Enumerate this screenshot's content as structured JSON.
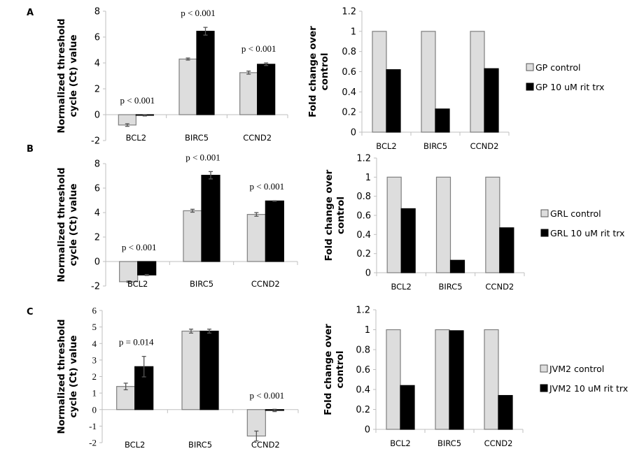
{
  "colors": {
    "control": "#dddddd",
    "treatment": "#000000",
    "bar_stroke": "#7f7f7f",
    "axis": "#bfbfbf",
    "error": "#555555"
  },
  "chart_data": [
    {
      "panel": "A",
      "type": "bar",
      "side": "left",
      "title": "",
      "xlabel": "",
      "ylabel": "Normalized threshold cycle (Ct) value",
      "ylabel_lines": [
        "Normalized threshold",
        "cycle (Ct) value"
      ],
      "ylim": [
        -2,
        8
      ],
      "yticks": [
        -2,
        0,
        2,
        4,
        6,
        8
      ],
      "tick_font": "sans",
      "categories": [
        "BCL2",
        "BIRC5",
        "CCND2"
      ],
      "series": [
        {
          "name": "control",
          "values": [
            -0.8,
            4.3,
            3.25
          ],
          "errors": [
            0.1,
            0.08,
            0.12
          ]
        },
        {
          "name": "10 uM rit trx",
          "values": [
            -0.05,
            6.45,
            3.9
          ],
          "errors": [
            0.05,
            0.3,
            0.1
          ]
        }
      ],
      "annotations": [
        "p < 0.001",
        "p < 0.001",
        "p < 0.001"
      ],
      "grid": false
    },
    {
      "panel": "A",
      "type": "bar",
      "side": "right",
      "title": "",
      "xlabel": "",
      "ylabel": "Fold change over control",
      "ylabel_lines": [
        "Fold change over",
        "control"
      ],
      "ylim": [
        0,
        1.2
      ],
      "yticks": [
        0,
        0.2,
        0.4,
        0.6,
        0.8,
        1,
        1.2
      ],
      "tick_font": "sans",
      "categories": [
        "BCL2",
        "BIRC5",
        "CCND2"
      ],
      "series": [
        {
          "name": "GP control",
          "values": [
            1,
            1,
            1
          ]
        },
        {
          "name": "GP 10 uM rit trx",
          "values": [
            0.62,
            0.23,
            0.63
          ]
        }
      ],
      "legend": [
        "GP control",
        "GP 10 uM rit trx"
      ],
      "legend_position": "right",
      "grid": false
    },
    {
      "panel": "B",
      "type": "bar",
      "side": "left",
      "title": "",
      "xlabel": "",
      "ylabel": "Normalized threshold cycle (Ct) value",
      "ylabel_lines": [
        "Normalized threshold",
        "cycle (Ct) value"
      ],
      "ylim": [
        -2,
        8
      ],
      "yticks": [
        -2,
        0,
        2,
        4,
        6,
        8
      ],
      "tick_font": "sans",
      "categories": [
        "BCL2",
        "BIRC5",
        "CCND2"
      ],
      "series": [
        {
          "name": "control",
          "values": [
            -1.65,
            4.15,
            3.85
          ],
          "errors": [
            0.05,
            0.12,
            0.15
          ]
        },
        {
          "name": "10 uM rit trx",
          "values": [
            -1.1,
            7.05,
            4.95
          ],
          "errors": [
            0.04,
            0.3,
            0.02
          ]
        }
      ],
      "annotations": [
        "p < 0.001",
        "p < 0.001",
        "p < 0.001"
      ],
      "grid": false
    },
    {
      "panel": "B",
      "type": "bar",
      "side": "right",
      "title": "",
      "xlabel": "",
      "ylabel": "Fold change over control",
      "ylabel_lines": [
        "Fold change over",
        "control"
      ],
      "ylim": [
        0,
        1.2
      ],
      "yticks": [
        0,
        0.2,
        0.4,
        0.6,
        0.8,
        1,
        1.2
      ],
      "tick_font": "sans",
      "categories": [
        "BCL2",
        "BIRC5",
        "CCND2"
      ],
      "series": [
        {
          "name": "GRL control",
          "values": [
            1,
            1,
            1
          ]
        },
        {
          "name": "GRL 10 uM rit trx",
          "values": [
            0.67,
            0.13,
            0.47
          ]
        }
      ],
      "legend": [
        "GRL control",
        "GRL 10 uM rit trx"
      ],
      "legend_position": "right",
      "grid": false
    },
    {
      "panel": "C",
      "type": "bar",
      "side": "left",
      "title": "",
      "xlabel": "",
      "ylabel": "Normalized threshold cycle (Ct) value",
      "ylabel_lines": [
        "Normalized threshold",
        "cycle (Ct) value"
      ],
      "ylim": [
        -2,
        6
      ],
      "yticks": [
        -2,
        -1,
        0,
        1,
        2,
        3,
        4,
        5,
        6
      ],
      "tick_font": "serif",
      "categories": [
        "BCL2",
        "BIRC5",
        "CCND2"
      ],
      "series": [
        {
          "name": "control",
          "values": [
            1.4,
            4.75,
            -1.6
          ],
          "errors": [
            0.2,
            0.12,
            0.3
          ]
        },
        {
          "name": "10 uM rit trx",
          "values": [
            2.6,
            4.75,
            -0.05
          ],
          "errors": [
            0.62,
            0.12,
            0.07
          ]
        }
      ],
      "annotations": [
        "p = 0.014",
        "",
        "p < 0.001"
      ],
      "grid": false
    },
    {
      "panel": "C",
      "type": "bar",
      "side": "right",
      "title": "",
      "xlabel": "",
      "ylabel": "Fold change over control",
      "ylabel_lines": [
        "Fold change over",
        "control"
      ],
      "ylim": [
        0,
        1.2
      ],
      "yticks": [
        0,
        0.2,
        0.4,
        0.6,
        0.8,
        1,
        1.2
      ],
      "tick_font": "sans",
      "categories": [
        "BCL2",
        "BIRC5",
        "CCND2"
      ],
      "series": [
        {
          "name": "JVM2 control",
          "values": [
            1,
            1,
            1
          ]
        },
        {
          "name": "JVM2 10 uM rit trx",
          "values": [
            0.44,
            0.99,
            0.34
          ]
        }
      ],
      "legend": [
        "JVM2 control",
        "JVM2 10 uM rit trx"
      ],
      "legend_position": "right",
      "grid": false
    }
  ],
  "panel_labels": [
    "A",
    "B",
    "C"
  ]
}
